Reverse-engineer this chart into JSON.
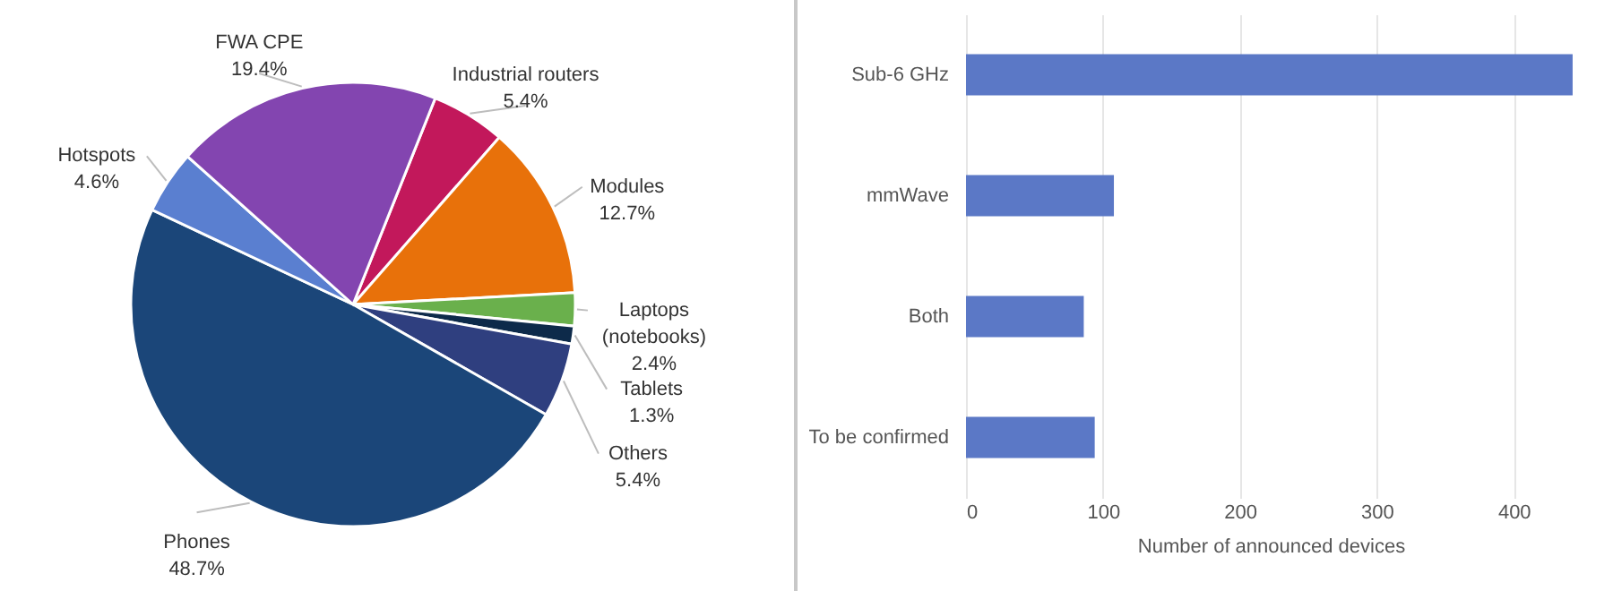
{
  "chart_data": [
    {
      "type": "pie",
      "categories": [
        "Industrial routers",
        "Modules",
        "Laptops (notebooks)",
        "Tablets",
        "Others",
        "Phones",
        "Hotspots",
        "FWA CPE"
      ],
      "values": [
        5.4,
        12.7,
        2.4,
        1.3,
        5.4,
        48.7,
        4.6,
        19.4
      ],
      "colors": [
        "#c2185b",
        "#e8710a",
        "#6ab04c",
        "#0d2a4a",
        "#2f3f7f",
        "#1b4679",
        "#5a7fd0",
        "#8345b0"
      ],
      "value_labels": [
        "5.4%",
        "12.7%",
        "2.4%",
        "1.3%",
        "5.4%",
        "48.7%",
        "4.6%",
        "19.4%"
      ]
    },
    {
      "type": "bar",
      "orientation": "horizontal",
      "categories": [
        "Sub-6 GHz",
        "mmWave",
        "Both",
        "To be confirmed"
      ],
      "values": [
        443,
        108,
        86,
        94
      ],
      "color": "#5b78c6",
      "xlim": [
        0,
        445
      ],
      "xticks": [
        0,
        100,
        200,
        300,
        400
      ],
      "xlabel": "Number of announced devices",
      "grid": "x"
    }
  ]
}
